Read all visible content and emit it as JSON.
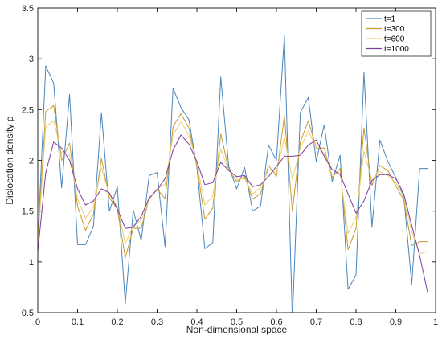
{
  "chart_data": {
    "type": "line",
    "xlabel": "Non-dimensional space",
    "ylabel": "Dislocation  density  ρ",
    "xlim": [
      0,
      1
    ],
    "ylim": [
      0.5,
      3.5
    ],
    "xticks": [
      "0",
      "0.1",
      "0.2",
      "0.3",
      "0.4",
      "0.5",
      "0.6",
      "0.7",
      "0.8",
      "0.9",
      "1"
    ],
    "yticks": [
      "0.5",
      "1",
      "1.5",
      "2",
      "2.5",
      "3",
      "3.5"
    ],
    "legend_position": "top-right",
    "x": [
      0.0,
      0.02,
      0.04,
      0.06,
      0.08,
      0.1,
      0.12,
      0.14,
      0.16,
      0.18,
      0.2,
      0.22,
      0.24,
      0.26,
      0.28,
      0.3,
      0.32,
      0.34,
      0.36,
      0.38,
      0.4,
      0.42,
      0.44,
      0.46,
      0.48,
      0.5,
      0.52,
      0.54,
      0.56,
      0.58,
      0.6,
      0.62,
      0.64,
      0.66,
      0.68,
      0.7,
      0.72,
      0.74,
      0.76,
      0.78,
      0.8,
      0.82,
      0.84,
      0.86,
      0.88,
      0.9,
      0.92,
      0.94,
      0.96,
      0.98
    ],
    "series": [
      {
        "name": "t=1",
        "color": "#4a86be",
        "values": [
          1.18,
          2.93,
          2.76,
          1.73,
          2.65,
          1.17,
          1.17,
          1.35,
          2.47,
          1.5,
          1.74,
          0.59,
          1.51,
          1.21,
          1.85,
          1.88,
          1.15,
          2.71,
          2.52,
          2.4,
          1.93,
          1.13,
          1.19,
          2.82,
          1.94,
          1.72,
          1.93,
          1.5,
          1.55,
          2.15,
          2.0,
          3.23,
          0.43,
          2.47,
          2.62,
          1.99,
          2.35,
          1.79,
          2.05,
          0.73,
          0.87,
          2.87,
          1.34,
          2.2,
          1.99,
          1.83,
          1.65,
          0.78,
          1.92,
          1.92
        ]
      },
      {
        "name": "t=300",
        "color": "#c99a2e",
        "values": [
          1.22,
          2.48,
          2.54,
          2.0,
          2.17,
          1.55,
          1.31,
          1.47,
          2.02,
          1.63,
          1.52,
          1.04,
          1.33,
          1.33,
          1.62,
          1.72,
          1.62,
          2.33,
          2.46,
          2.32,
          1.94,
          1.42,
          1.53,
          2.26,
          1.91,
          1.79,
          1.84,
          1.62,
          1.67,
          1.95,
          1.84,
          2.44,
          1.5,
          2.18,
          2.39,
          2.12,
          2.12,
          1.83,
          1.92,
          1.12,
          1.33,
          2.32,
          1.75,
          1.95,
          1.9,
          1.75,
          1.61,
          1.16,
          1.2,
          1.2
        ]
      },
      {
        "name": "t=600",
        "color": "#eccc73",
        "values": [
          1.18,
          2.33,
          2.39,
          2.07,
          2.06,
          1.62,
          1.43,
          1.54,
          1.93,
          1.66,
          1.55,
          1.18,
          1.36,
          1.41,
          1.61,
          1.72,
          1.76,
          2.25,
          2.38,
          2.25,
          1.97,
          1.56,
          1.65,
          2.11,
          1.9,
          1.81,
          1.82,
          1.67,
          1.73,
          1.91,
          1.88,
          2.23,
          1.81,
          2.12,
          2.29,
          2.13,
          2.07,
          1.86,
          1.87,
          1.28,
          1.44,
          2.09,
          1.8,
          1.89,
          1.85,
          1.78,
          1.64,
          1.3,
          1.08,
          1.1
        ]
      },
      {
        "name": "t=1000",
        "color": "#7c3d9e",
        "values": [
          1.1,
          1.88,
          2.18,
          2.12,
          2.0,
          1.72,
          1.56,
          1.6,
          1.72,
          1.68,
          1.52,
          1.33,
          1.34,
          1.45,
          1.63,
          1.71,
          1.82,
          2.1,
          2.25,
          2.16,
          1.99,
          1.76,
          1.78,
          1.98,
          1.9,
          1.84,
          1.85,
          1.74,
          1.76,
          1.84,
          1.94,
          2.04,
          2.04,
          2.05,
          2.15,
          2.2,
          2.04,
          1.91,
          1.86,
          1.67,
          1.48,
          1.6,
          1.8,
          1.86,
          1.86,
          1.82,
          1.67,
          1.36,
          1.06,
          0.7
        ]
      }
    ]
  }
}
